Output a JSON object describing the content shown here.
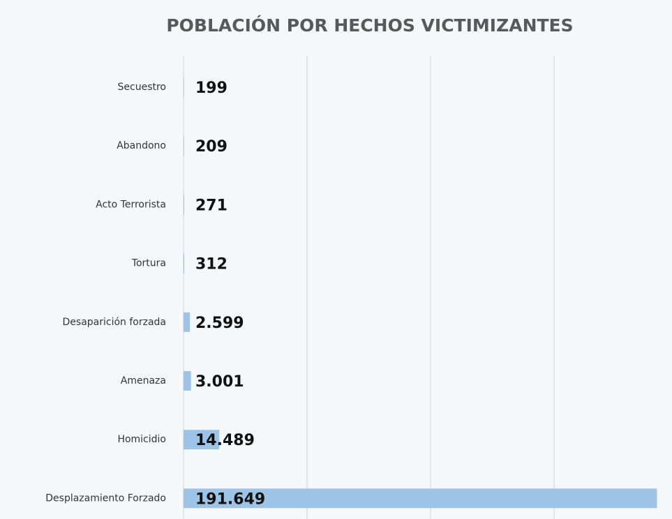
{
  "chart_data": {
    "type": "hbar",
    "title": "POBLACIÓN POR HECHOS VICTIMIZANTES",
    "categories": [
      "Secuestro",
      "Abandono",
      "Acto Terrorista",
      "Tortura",
      "Desaparición forzada",
      "Amenaza",
      "Homicidio",
      "Desplazamiento Forzado"
    ],
    "values": [
      199,
      209,
      271,
      312,
      2599,
      3001,
      14489,
      191649
    ],
    "value_labels": [
      "199",
      "209",
      "271",
      "312",
      "2.599",
      "3.001",
      "14.489",
      "191.649"
    ],
    "color": "#9dc3e6",
    "xlim": [
      0,
      200000
    ],
    "xticks": [
      0,
      50000,
      100000,
      150000
    ],
    "grid": true
  }
}
